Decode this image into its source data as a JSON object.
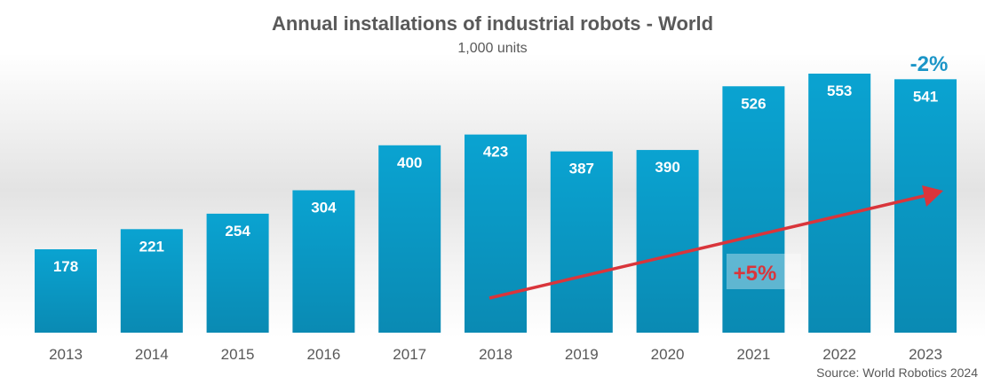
{
  "chart_data": {
    "type": "bar",
    "title": "Annual installations of industrial robots - World",
    "subtitle": "1,000 units",
    "categories": [
      "2013",
      "2014",
      "2015",
      "2016",
      "2017",
      "2018",
      "2019",
      "2020",
      "2021",
      "2022",
      "2023"
    ],
    "values": [
      178,
      221,
      254,
      304,
      400,
      423,
      387,
      390,
      526,
      553,
      541
    ],
    "xlabel": "",
    "ylabel": "",
    "ylim": [
      0,
      553
    ],
    "annotations": {
      "change_label": "-2%",
      "cagr_label": "+5%"
    },
    "source": "Source: World Robotics 2024"
  },
  "colors": {
    "bar": "#0b98c4",
    "bar_label": "#ffffff",
    "change_label": "#1b95c7",
    "trend_arrow": "#d9353b",
    "text": "#595959"
  }
}
